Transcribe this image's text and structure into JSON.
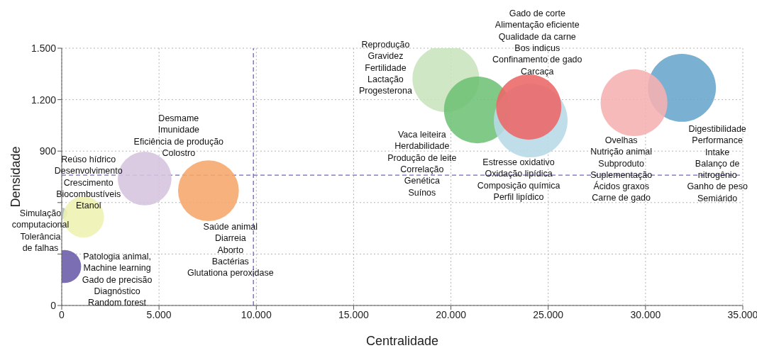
{
  "chart_data": {
    "type": "bubble",
    "xlabel": "Centralidade",
    "ylabel": "Densidade",
    "x": [
      150,
      0,
      1120,
      4260,
      7540,
      19740,
      21360,
      24100,
      24000,
      31870,
      29410
    ],
    "values": [
      227,
      537,
      516,
      740,
      669,
      1322,
      1140,
      1078,
      1157,
      1269,
      1182
    ],
    "sizes": [
      0.2,
      0.024,
      0.31,
      0.53,
      0.68,
      0.82,
      0.82,
      1,
      0.78,
      0.85,
      0.82
    ],
    "colors": [
      "#6a5aa8",
      "#a9b9b9",
      "#eef2b0",
      "#d5c4df",
      "#f6a66a",
      "#c8e4bd",
      "#70c175",
      "#b7d9e6",
      "#ec6666",
      "#68a5cb",
      "#f6b1b1"
    ],
    "xlim": [
      0,
      35000
    ],
    "ylim": [
      0,
      1500
    ],
    "xticks": [
      0,
      {
        "value": 5000,
        "label": "5.000"
      },
      {
        "value": 10000,
        "label": "10.000"
      },
      {
        "value": 15000,
        "label": "15.000"
      },
      {
        "value": 20000,
        "label": "20.000"
      },
      {
        "value": 25000,
        "label": "25.000"
      },
      {
        "value": 30000,
        "label": "30.000"
      },
      {
        "value": 35000,
        "label": "35.000"
      }
    ],
    "yticks": [
      0,
      {
        "value": 300,
        "label": null
      },
      {
        "value": 600,
        "label": null
      },
      900,
      {
        "value": 1200,
        "label": "1.200"
      },
      {
        "value": 1500,
        "label": "1.500"
      }
    ],
    "grid": true,
    "ref_lines": [
      {
        "axis": "x",
        "value": 9850,
        "color": "#6f63c8",
        "line_style": "dashed"
      },
      {
        "axis": "y",
        "value": 760,
        "color": "#6f63c8",
        "line_style": "dashed"
      }
    ],
    "annotations": [
      "Patologia animal,\nMachine learning\nGado de precisão\nDiagnóstico\nRandom forest",
      "Simulação\ncomputacional\nTolerância\nde falhas",
      "Reúso hídrico\nDesenvolvimento\nCrescimento\nBiocombustíveis\nEtanol",
      "Desmame\nImunidade\nEficiência de produção\nColostro",
      "Saúde animal\nDiarreia\nAborto\nBactérias\nGlutationa peroxidase",
      "Reprodução\nGravidez\nFertilidade\nLactação\nProgesterona",
      "Vaca leiteira\nHerdabilidade\nProdução de leite\nCorrelação\nGenética\nSuínos",
      "Estresse oxidativo\nOxidação lipídica\nComposição química\nPerfil lipídico",
      "Gado de corte\nAlimentação eficiente\nQualidade da carne\nBos indicus\nConfinamento de gado\nCarcaça",
      "Digestibilidade\nPerformance\nIntake\nBalanço de\nnitrogênio\nGanho de peso\nSemiárido",
      "Ovelhas\nNutrição animal\nSubproduto\nSuplementação\nÁcidos graxos\nCarne de gado"
    ]
  }
}
